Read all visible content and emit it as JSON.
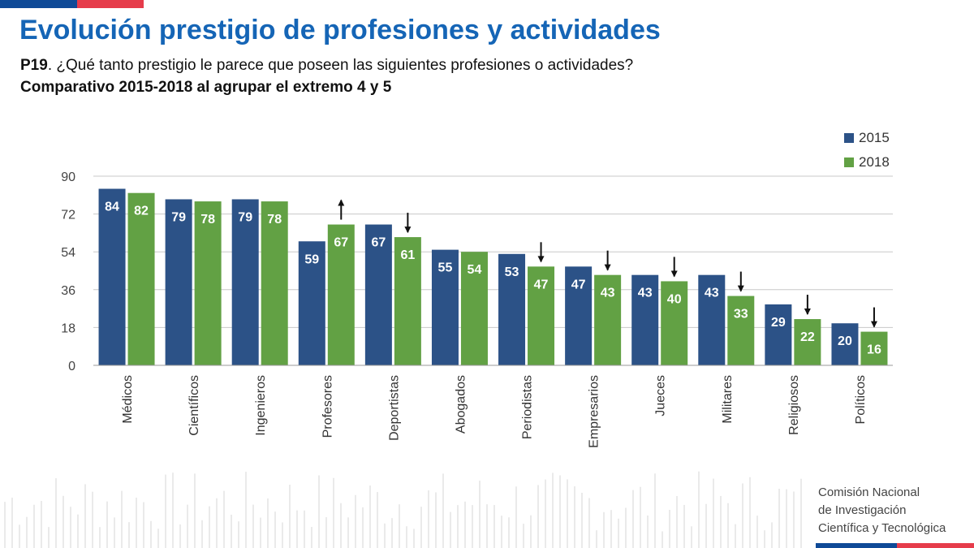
{
  "header": {
    "title": "Evolución prestigio de profesiones y actividades",
    "question_code": "P19",
    "question_text": ". ¿Qué tanto prestigio le parece que poseen las siguientes profesiones o actividades?",
    "subtitle": "Comparativo 2015-2018 al agrupar el extremo 4 y 5"
  },
  "colors": {
    "series_2015": "#2c5287",
    "series_2018": "#62a144",
    "brand_blue": "#0f4a97",
    "brand_red": "#e63c4b",
    "title": "#1565b6"
  },
  "chart_data": {
    "type": "bar",
    "categories": [
      "Médicos",
      "Científicos",
      "Ingenieros",
      "Profesores",
      "Deportistas",
      "Abogados",
      "Periodistas",
      "Empresarios",
      "Jueces",
      "Militares",
      "Religiosos",
      "Políticos"
    ],
    "series": [
      {
        "name": "2015",
        "values": [
          84,
          79,
          79,
          59,
          67,
          55,
          53,
          47,
          43,
          43,
          29,
          20
        ]
      },
      {
        "name": "2018",
        "values": [
          82,
          78,
          78,
          67,
          61,
          54,
          47,
          43,
          40,
          33,
          22,
          16
        ]
      }
    ],
    "trend_arrows": [
      "",
      "",
      "",
      "up",
      "down",
      "",
      "down",
      "down",
      "down",
      "down",
      "down",
      "down"
    ],
    "yticks": [
      0,
      18,
      36,
      54,
      72,
      90
    ],
    "ylim": [
      0,
      90
    ],
    "grid": true,
    "legend_position": "top-right",
    "data_labels": true
  },
  "footer": {
    "institution_lines": [
      "Comisión Nacional",
      "de Investigación",
      "Científica y Tecnológica"
    ]
  }
}
